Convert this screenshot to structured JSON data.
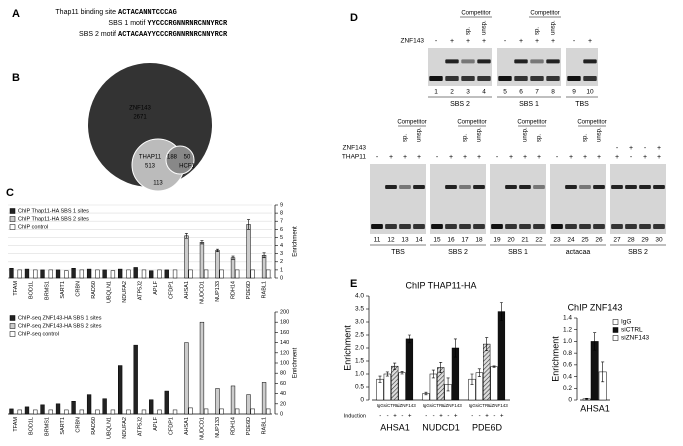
{
  "panel_labels": [
    "A",
    "B",
    "C",
    "D",
    "E"
  ],
  "motifs": [
    {
      "label": "Thap11 binding site",
      "parts": [
        {
          "text": "ACTACAN",
          "color": "#000000"
        },
        {
          "text": "NTCCCAG",
          "color": "#aaaaaa"
        }
      ]
    },
    {
      "label": "SBS 1 motif",
      "parts": [
        {
          "text": "YYCCCRG",
          "color": "#aaaaaa"
        },
        {
          "text": "NNRNRCNNYRCR",
          "color": "#000000"
        }
      ]
    },
    {
      "label": "SBS 2 motif",
      "parts": [
        {
          "text": "ACTACAA",
          "color": "#000000"
        },
        {
          "text": "YYCCCRG",
          "color": "#aaaaaa"
        },
        {
          "text": "NNRNRCNNYRCR",
          "color": "#000000"
        }
      ]
    }
  ],
  "venn": [
    {
      "label": "ZNF143",
      "count": 2671
    },
    {
      "label": "THAP11",
      "count": 513
    },
    {
      "count": 188
    },
    {
      "label": "HCF1",
      "count": 50
    },
    {
      "count": 113
    }
  ],
  "gels": [
    {
      "rows": [
        {
          "label": "ZNF143",
          "signs": [
            "-",
            "+",
            "+",
            "+",
            "-",
            "+",
            "+",
            "+",
            "-",
            "+"
          ]
        }
      ],
      "competitor_label": "Competitor",
      "competitor": [
        null,
        null,
        "sp.",
        "unsp.",
        null,
        null,
        "sp.",
        "unsp.",
        null,
        null
      ],
      "groups": [
        {
          "label": "SBS 2",
          "lanes": [
            1,
            2,
            3,
            4
          ]
        },
        {
          "label": "SBS 1",
          "lanes": [
            5,
            6,
            7,
            8
          ]
        },
        {
          "label": "TBS",
          "lanes": [
            9,
            10
          ]
        }
      ]
    },
    {
      "rows": [
        {
          "label": "ZNF143",
          "signs": [
            null,
            null,
            null,
            null,
            null,
            null,
            null,
            null,
            null,
            null,
            null,
            null,
            null,
            null,
            null,
            null,
            "-",
            "+",
            "-",
            "+"
          ]
        },
        {
          "label": "THAP11",
          "signs": [
            "-",
            "+",
            "+",
            "+",
            "-",
            "+",
            "+",
            "+",
            "-",
            "+",
            "+",
            "+",
            "-",
            "+",
            "+",
            "+",
            "+",
            "-",
            "+",
            "+"
          ]
        }
      ],
      "competitor_label": "Competitor",
      "competitor": [
        null,
        null,
        "sp.",
        "unsp.",
        null,
        null,
        "sp.",
        "unsp.",
        null,
        null,
        "unsp.",
        "sp.",
        null,
        null,
        "sp.",
        "unsp.",
        null,
        null,
        null,
        null
      ],
      "groups": [
        {
          "label": "TBS",
          "lanes": [
            11,
            12,
            13,
            14
          ]
        },
        {
          "label": "SBS 2",
          "lanes": [
            15,
            16,
            17,
            18
          ]
        },
        {
          "label": "SBS 1",
          "lanes": [
            19,
            20,
            21,
            22
          ]
        },
        {
          "label": "actacaa",
          "lanes": [
            23,
            24,
            25,
            26
          ]
        },
        {
          "label": "SBS 2",
          "lanes": [
            27,
            28,
            29,
            30
          ]
        }
      ]
    }
  ],
  "chart_data": [
    {
      "type": "bar",
      "y_label": "Enrichment",
      "axis_side": "right",
      "grid": true,
      "legend": "top-left",
      "rotate_labels": true,
      "categories": [
        "TFAM",
        "BOD1L",
        "BRMS1",
        "SART1",
        "CRBN",
        "RAD50",
        "UBQLN1",
        "NDUFA2",
        "ATP5J2",
        "APLF",
        "CFDP1",
        "AHSA1",
        "NUDCD1",
        "NUP133",
        "RDH14",
        "PDE6D",
        "RABL1"
      ],
      "ylim": [
        0,
        9
      ],
      "yticks": [
        0,
        1,
        2,
        3,
        4,
        5,
        6,
        7,
        8,
        9
      ],
      "series": [
        {
          "name": "ChIP Thap11-HA SBS 1 sites",
          "color": "#222222",
          "values": [
            1.2,
            1.1,
            1.0,
            1.0,
            1.2,
            1.1,
            1.0,
            1.1,
            1.3,
            0.9,
            1.0,
            null,
            null,
            null,
            null,
            null,
            null
          ]
        },
        {
          "name": "ChIP Thap11-HA SBS 2 sites",
          "color": "#cccccc",
          "values": [
            null,
            null,
            null,
            null,
            null,
            null,
            null,
            null,
            null,
            null,
            null,
            5.2,
            4.4,
            3.4,
            2.5,
            6.6,
            2.8
          ],
          "errors": [
            null,
            null,
            null,
            null,
            null,
            null,
            null,
            null,
            null,
            null,
            null,
            0.3,
            0.2,
            0.15,
            0.2,
            0.6,
            0.3
          ]
        },
        {
          "name": "ChIP control",
          "color": "#ffffff",
          "values": [
            1.0,
            1.0,
            1.0,
            0.9,
            1.0,
            1.0,
            0.9,
            1.0,
            1.0,
            1.0,
            1.0,
            1.0,
            1.0,
            1.0,
            1.0,
            1.0,
            1.0
          ]
        }
      ]
    },
    {
      "type": "bar",
      "y_label": "Enrichment",
      "axis_side": "right",
      "grid": false,
      "legend": "top-left",
      "rotate_labels": true,
      "categories": [
        "TFAM",
        "BOD1L",
        "BRMS1",
        "SART1",
        "CRBN",
        "RAD50",
        "UBQLN1",
        "NDUFA2",
        "ATP5J2",
        "APLF",
        "CFDP1",
        "AHSA1",
        "NUDCD1",
        "NUP133",
        "RDH14",
        "PDE6D",
        "RABL1"
      ],
      "ylim": [
        0,
        200
      ],
      "yticks": [
        0,
        20,
        40,
        60,
        80,
        100,
        120,
        140,
        160,
        180,
        200
      ],
      "series": [
        {
          "name": "ChIP-seq ZNF143-HA SBS 1 sites",
          "color": "#222222",
          "values": [
            10,
            14,
            18,
            20,
            25,
            38,
            30,
            95,
            135,
            28,
            45,
            null,
            null,
            null,
            null,
            null,
            null
          ]
        },
        {
          "name": "ChIP-seq ZNF143-HA SBS 2 sites",
          "color": "#cccccc",
          "values": [
            null,
            null,
            null,
            null,
            null,
            null,
            null,
            null,
            null,
            null,
            null,
            140,
            180,
            50,
            55,
            38,
            62
          ]
        },
        {
          "name": "ChIP-seq control",
          "color": "#ffffff",
          "values": [
            8,
            8,
            8,
            8,
            8,
            8,
            8,
            8,
            8,
            8,
            8,
            12,
            10,
            10,
            10,
            10,
            10
          ]
        }
      ]
    },
    {
      "type": "bar",
      "title": "ChIP THAP11-HA",
      "y_label": "Enrichment",
      "axis_side": "left",
      "grid": false,
      "rotate_labels": false,
      "categories": [
        "AHSA1",
        "NUDCD1",
        "PDE6D"
      ],
      "bar_labels": [
        "IgG",
        "siCTRL",
        "siZNF143"
      ],
      "induction_label": "Induction",
      "induction": [
        "-",
        "-",
        "+",
        "-",
        "+"
      ],
      "ylim": [
        0,
        4
      ],
      "yticks": [
        0,
        0.5,
        {
          "value": 1,
          "label": "1.0"
        },
        1.5,
        {
          "value": 2,
          "label": "2.0"
        },
        2.5,
        {
          "value": 3,
          "label": "3.0"
        },
        3.5,
        {
          "value": 4,
          "label": "4.0"
        }
      ],
      "series": [
        {
          "color": "#ffffff",
          "values": [
            0.8,
            0.25,
            0.8
          ],
          "errors": [
            0.12,
            0.05,
            0.2
          ]
        },
        {
          "color": "#ffffff",
          "values": [
            1.0,
            1.0,
            1.05
          ],
          "errors": [
            0.08,
            0.15,
            0.15
          ]
        },
        {
          "color": "#999999",
          "pattern": "hatch",
          "values": [
            1.3,
            1.25,
            2.15
          ],
          "errors": [
            0.12,
            0.2,
            0.25
          ]
        },
        {
          "color": "#ffffff",
          "values": [
            1.05,
            0.6,
            1.28
          ],
          "errors": [
            0.05,
            0.25,
            0.03
          ]
        },
        {
          "color": "#111111",
          "values": [
            2.35,
            2.0,
            3.4
          ],
          "errors": [
            0.15,
            0.35,
            0.35
          ]
        }
      ]
    },
    {
      "type": "bar",
      "title": "ChIP ZNF143",
      "y_label": "Enrichment",
      "axis_side": "left",
      "grid": false,
      "legend": "top-right",
      "rotate_labels": false,
      "categories": [
        "AHSA1"
      ],
      "ylim": [
        0,
        1.4
      ],
      "yticks": [
        0,
        0.2,
        0.4,
        0.6,
        0.8,
        {
          "value": 1,
          "label": "1.0"
        },
        1.2,
        1.4
      ],
      "series": [
        {
          "name": "IgG",
          "color": "#ffffff",
          "values": [
            0.02
          ],
          "errors": [
            0.01
          ]
        },
        {
          "name": "siCTRL",
          "color": "#111111",
          "values": [
            1.0
          ],
          "errors": [
            0.15
          ]
        },
        {
          "name": "siZNF143",
          "color": "#ffffff",
          "values": [
            0.48
          ],
          "errors": [
            0.17
          ]
        }
      ]
    }
  ]
}
